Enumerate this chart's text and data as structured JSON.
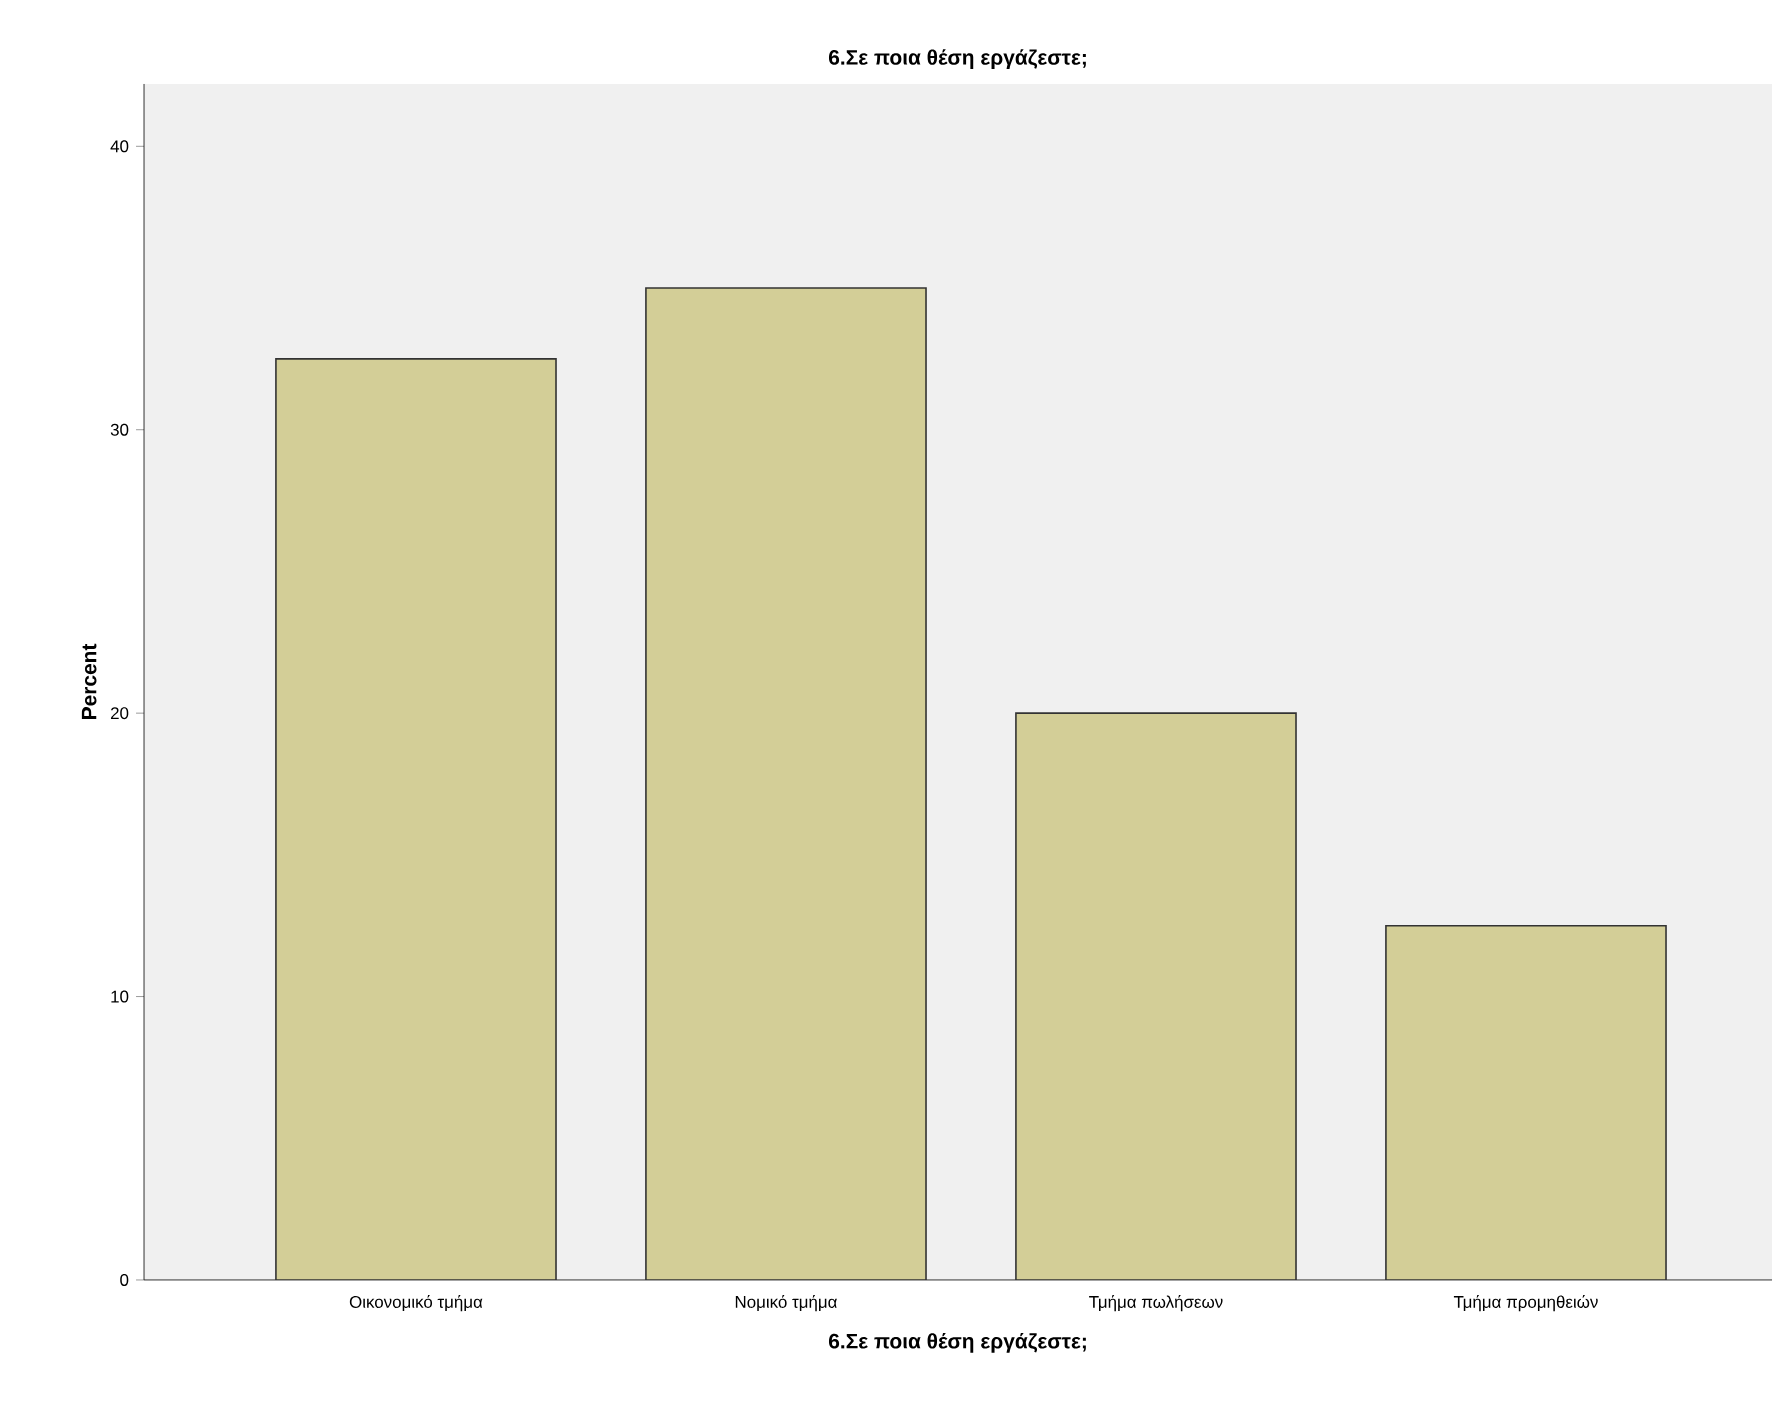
{
  "chart_data": {
    "type": "bar",
    "title": "6.Σε ποια θέση εργάζεστε;",
    "xlabel": "6.Σε ποια θέση εργάζεστε;",
    "ylabel": "Percent",
    "categories": [
      "Οικονομικό τμήμα",
      "Νομικό τμήμα",
      "Τμήμα πωλήσεων",
      "Τμήμα προμηθειών"
    ],
    "values": [
      32.5,
      35,
      20,
      12.5
    ],
    "color": "#d3ce97",
    "ylim": [
      0,
      42.2
    ],
    "yticks": [
      0,
      10,
      20,
      30,
      40
    ],
    "grid": false
  }
}
